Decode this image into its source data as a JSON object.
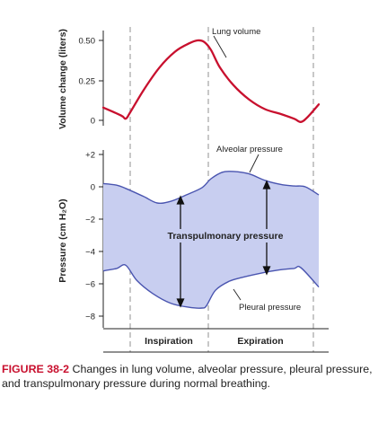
{
  "chart_data": {
    "type": "line",
    "x_phase_labels": [
      "Inspiration",
      "Expiration"
    ],
    "top_panel": {
      "ylabel": "Volume change (liters)",
      "yticks": [
        "0.50",
        "0.25",
        "0"
      ],
      "ylim": [
        0,
        0.5
      ],
      "series": [
        {
          "name": "Lung volume",
          "color": "#c8102e",
          "points": [
            [
              0.0,
              0.08
            ],
            [
              0.08,
              0.03
            ],
            [
              0.1,
              0.01
            ],
            [
              0.12,
              0.05
            ],
            [
              0.18,
              0.19
            ],
            [
              0.25,
              0.33
            ],
            [
              0.32,
              0.43
            ],
            [
              0.38,
              0.48
            ],
            [
              0.42,
              0.5
            ],
            [
              0.45,
              0.49
            ],
            [
              0.48,
              0.44
            ],
            [
              0.52,
              0.33
            ],
            [
              0.58,
              0.22
            ],
            [
              0.65,
              0.13
            ],
            [
              0.72,
              0.07
            ],
            [
              0.79,
              0.04
            ],
            [
              0.85,
              0.01
            ],
            [
              0.88,
              -0.01
            ],
            [
              0.91,
              0.02
            ],
            [
              0.96,
              0.1
            ]
          ]
        }
      ]
    },
    "bottom_panel": {
      "ylabel": "Pressure (cm H₂O)",
      "yticks": [
        "+2",
        "0",
        "−2",
        "−4",
        "−6",
        "−8"
      ],
      "ylim": [
        -8.5,
        2
      ],
      "series": [
        {
          "name": "Alveolar pressure",
          "color": "#4a55b0",
          "points": [
            [
              0.0,
              0.2
            ],
            [
              0.06,
              0.1
            ],
            [
              0.1,
              -0.1
            ],
            [
              0.18,
              -0.6
            ],
            [
              0.24,
              -1.0
            ],
            [
              0.3,
              -0.9
            ],
            [
              0.37,
              -0.5
            ],
            [
              0.44,
              -0.05
            ],
            [
              0.48,
              0.5
            ],
            [
              0.53,
              0.9
            ],
            [
              0.58,
              0.95
            ],
            [
              0.65,
              0.8
            ],
            [
              0.72,
              0.4
            ],
            [
              0.79,
              0.15
            ],
            [
              0.85,
              0.05
            ],
            [
              0.9,
              0.0
            ],
            [
              0.96,
              -0.5
            ]
          ]
        },
        {
          "name": "Pleural pressure",
          "color": "#4a55b0",
          "points": [
            [
              0.0,
              -5.2
            ],
            [
              0.06,
              -5.05
            ],
            [
              0.1,
              -4.85
            ],
            [
              0.15,
              -5.8
            ],
            [
              0.22,
              -6.6
            ],
            [
              0.3,
              -7.2
            ],
            [
              0.38,
              -7.45
            ],
            [
              0.44,
              -7.5
            ],
            [
              0.46,
              -7.35
            ],
            [
              0.5,
              -6.4
            ],
            [
              0.56,
              -5.85
            ],
            [
              0.62,
              -5.6
            ],
            [
              0.7,
              -5.35
            ],
            [
              0.78,
              -5.15
            ],
            [
              0.85,
              -5.05
            ],
            [
              0.88,
              -5.0
            ],
            [
              0.96,
              -6.2
            ]
          ]
        }
      ],
      "annotation": "Transpulmonary pressure"
    }
  },
  "caption": {
    "figure_label": "FIGURE 38-2",
    "text": "Changes in lung volume, alveolar pressure, pleural pressure, and transpulmonary pressure during normal breathing."
  }
}
